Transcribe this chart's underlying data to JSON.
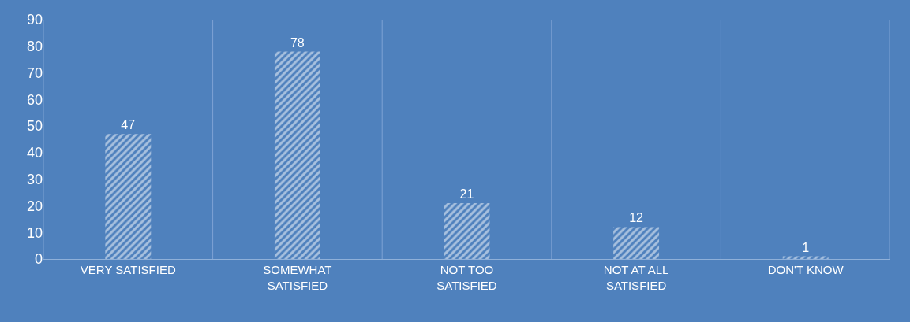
{
  "chart_data": {
    "type": "bar",
    "categories": [
      "VERY SATISFIED",
      "SOMEWHAT SATISFIED",
      "NOT TOO SATISFIED",
      "NOT AT ALL SATISFIED",
      "DON'T KNOW"
    ],
    "values": [
      47,
      78,
      21,
      12,
      1
    ],
    "color": "#ffffff",
    "ylim": [
      0,
      90
    ],
    "yticks": [
      0,
      10,
      20,
      30,
      40,
      50,
      60,
      70,
      80,
      90
    ],
    "grid": "x",
    "data_labels": true,
    "legend": false
  }
}
